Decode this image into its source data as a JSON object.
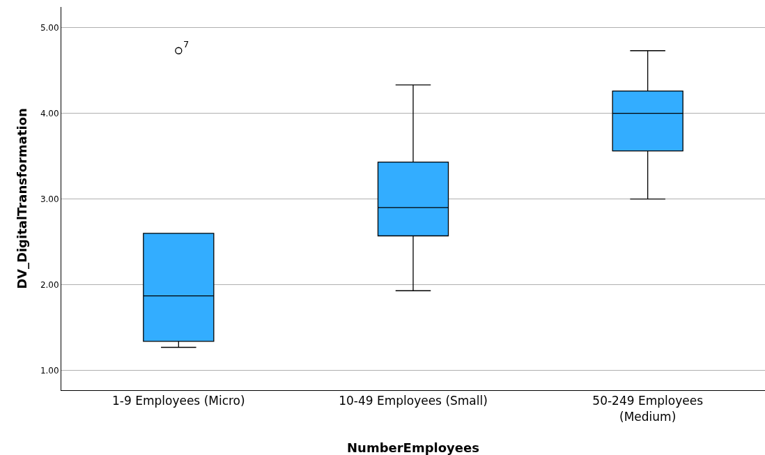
{
  "chart_data": {
    "type": "box",
    "xlabel": "NumberEmployees",
    "ylabel": "DV_DigitalTransformation",
    "categories": [
      "1-9 Employees (Micro)",
      "10-49 Employees (Small)",
      "50-249 Employees (Medium)"
    ],
    "boxes": [
      {
        "low": 1.27,
        "q1": 1.34,
        "median": 1.87,
        "q3": 2.6,
        "high": 2.6,
        "outliers": [
          4.73
        ]
      },
      {
        "low": 1.93,
        "q1": 2.57,
        "median": 2.9,
        "q3": 3.43,
        "high": 4.33
      },
      {
        "low": 3.0,
        "q1": 3.56,
        "median": 4.0,
        "q3": 4.26,
        "high": 4.73
      }
    ],
    "color": "#33adff",
    "annotations": [
      "7"
    ],
    "ylim": [
      0.77,
      5.24
    ],
    "yticks": [
      {
        "value": 1,
        "label": "1.00"
      },
      {
        "value": 2,
        "label": "2.00"
      },
      {
        "value": 3,
        "label": "3.00"
      },
      {
        "value": 4,
        "label": "4.00"
      },
      {
        "value": 5,
        "label": "5.00"
      }
    ],
    "grid": "y"
  }
}
